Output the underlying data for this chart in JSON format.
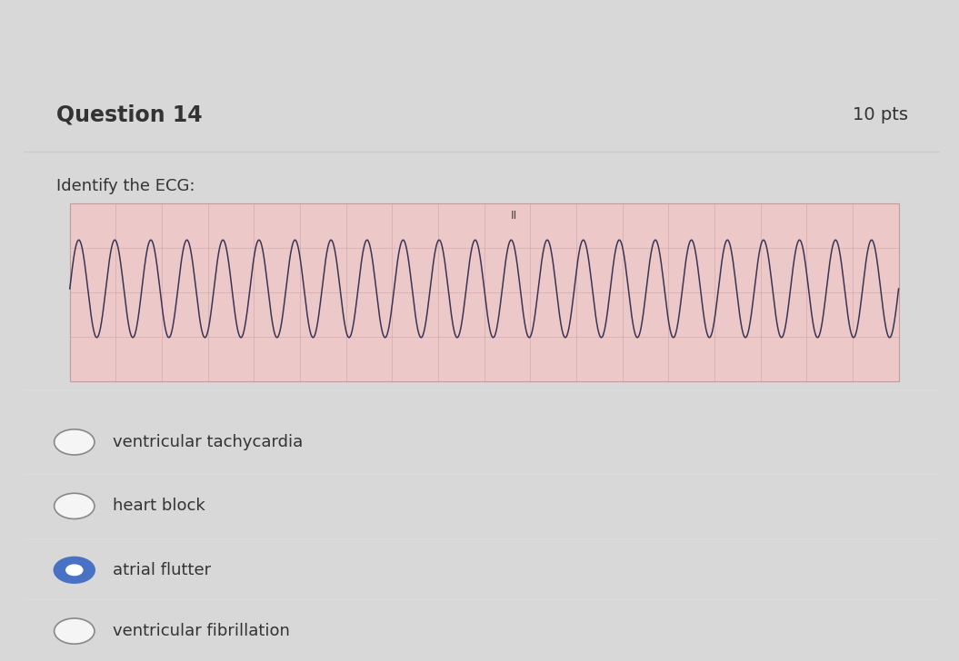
{
  "title": "Question 14",
  "points": "10 pts",
  "question_text": "Identify the ECG:",
  "ecg_bg_color": "#edc8c8",
  "ecg_grid_color": "#c8a0a0",
  "ecg_line_color": "#3a3555",
  "ecg_label": "II",
  "choices": [
    {
      "text": "ventricular tachycardia",
      "selected": false
    },
    {
      "text": "heart block",
      "selected": false
    },
    {
      "text": "atrial flutter",
      "selected": true
    },
    {
      "text": "ventricular fibrillation",
      "selected": false
    }
  ],
  "outer_bg_color": "#d8d8d8",
  "card_color": "#f5f5f5",
  "title_area_color": "#f0f0f0",
  "title_fontsize": 17,
  "pts_fontsize": 14,
  "question_fontsize": 13,
  "choice_fontsize": 13,
  "selected_color": "#4a72c4",
  "selected_inner_color": "#ffffff",
  "unselected_color": "#888888",
  "ecg_num_cycles": 23,
  "ecg_amplitude": 0.55
}
